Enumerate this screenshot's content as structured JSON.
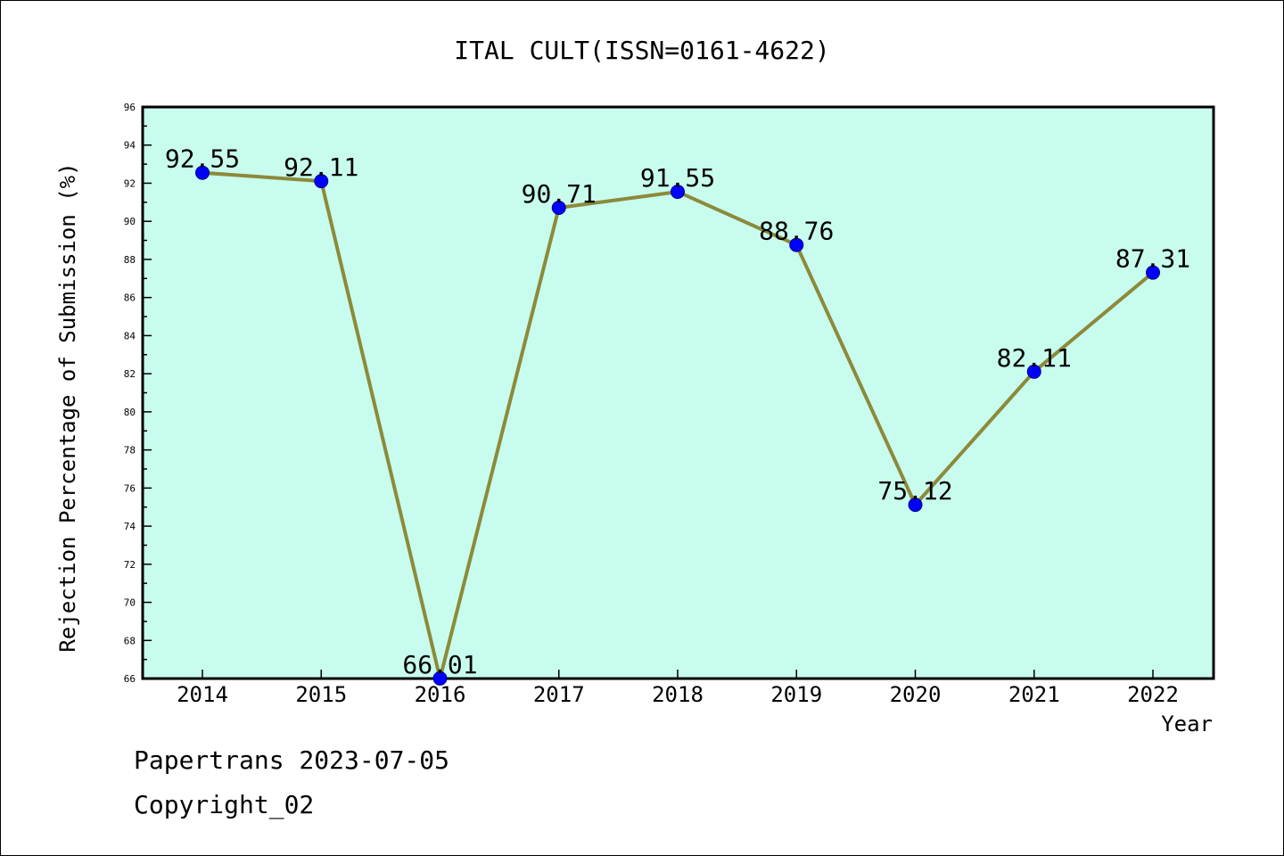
{
  "chart_data": {
    "type": "line",
    "title": "ITAL CULT(ISSN=0161-4622)",
    "xlabel": "Year",
    "ylabel": "Rejection Percentage of Submission (%)",
    "categories": [
      "2014",
      "2015",
      "2016",
      "2017",
      "2018",
      "2019",
      "2020",
      "2021",
      "2022"
    ],
    "values": [
      92.55,
      92.11,
      66.01,
      90.71,
      91.55,
      88.76,
      75.12,
      82.11,
      87.31
    ],
    "data_labels": [
      "92.55",
      "92.11",
      "66.01",
      "90.71",
      "91.55",
      "88.76",
      "75.12",
      "82.11",
      "87.31"
    ],
    "ylim": [
      66,
      96
    ],
    "yticks": [
      66,
      68,
      70,
      72,
      74,
      76,
      78,
      80,
      82,
      84,
      86,
      88,
      90,
      92,
      94,
      96
    ],
    "grid": false,
    "legend": "none",
    "colors": {
      "plot_background": "#c8fcee",
      "line": "#8c8a3a",
      "marker": "#0000ff",
      "marker_edge": "#00008b"
    }
  },
  "footer": {
    "line1": "Papertrans 2023-07-05",
    "line2": "Copyright_02"
  }
}
